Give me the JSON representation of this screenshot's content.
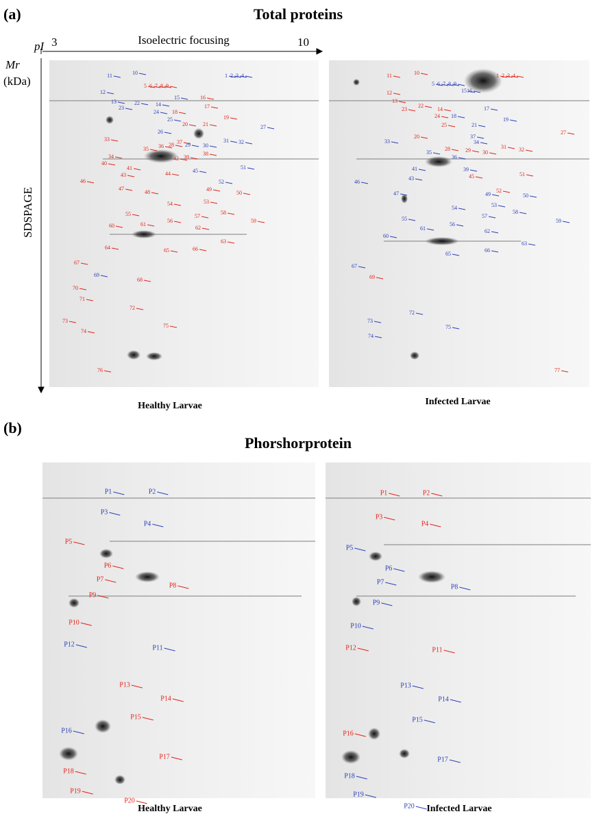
{
  "panel_a": {
    "label": "(a)",
    "title": "Total proteins",
    "axis": {
      "pI_label": "pI",
      "pI_min": 3,
      "pI_max": 10,
      "x_title": "Isoelectric focusing",
      "mr_label": "Mr",
      "mr_unit": "(kDa)",
      "y_title": "SDSPAGE"
    },
    "gels": [
      {
        "caption": "Healthy Larvae",
        "spots": [
          {
            "label": "1",
            "color": "blue"
          },
          {
            "label": "2",
            "color": "blue"
          },
          {
            "label": "3",
            "color": "blue"
          },
          {
            "label": "4",
            "color": "blue"
          },
          {
            "label": "5",
            "color": "red"
          },
          {
            "label": "6",
            "color": "red"
          },
          {
            "label": "7",
            "color": "red"
          },
          {
            "label": "8",
            "color": "red"
          },
          {
            "label": "9",
            "color": "red"
          },
          {
            "label": "10",
            "color": "blue"
          },
          {
            "label": "11",
            "color": "blue"
          },
          {
            "label": "12",
            "color": "blue"
          },
          {
            "label": "13",
            "color": "blue"
          },
          {
            "label": "14",
            "color": "blue"
          },
          {
            "label": "15",
            "color": "blue"
          },
          {
            "label": "16",
            "color": "red"
          },
          {
            "label": "17",
            "color": "red"
          },
          {
            "label": "18",
            "color": "red"
          },
          {
            "label": "19",
            "color": "red"
          },
          {
            "label": "20",
            "color": "red"
          },
          {
            "label": "21",
            "color": "red"
          },
          {
            "label": "22",
            "color": "blue"
          },
          {
            "label": "23",
            "color": "blue"
          },
          {
            "label": "24",
            "color": "blue"
          },
          {
            "label": "25",
            "color": "blue"
          },
          {
            "label": "26",
            "color": "blue"
          },
          {
            "label": "27",
            "color": "blue"
          },
          {
            "label": "28",
            "color": "red"
          },
          {
            "label": "29",
            "color": "blue"
          },
          {
            "label": "30",
            "color": "blue"
          },
          {
            "label": "31",
            "color": "blue"
          },
          {
            "label": "32",
            "color": "blue"
          },
          {
            "label": "33",
            "color": "red"
          },
          {
            "label": "34",
            "color": "red"
          },
          {
            "label": "35",
            "color": "red"
          },
          {
            "label": "36",
            "color": "red"
          },
          {
            "label": "37",
            "color": "red"
          },
          {
            "label": "38",
            "color": "red"
          },
          {
            "label": "39",
            "color": "red"
          },
          {
            "label": "40",
            "color": "red"
          },
          {
            "label": "41",
            "color": "red"
          },
          {
            "label": "42",
            "color": "red"
          },
          {
            "label": "43",
            "color": "red"
          },
          {
            "label": "44",
            "color": "red"
          },
          {
            "label": "45",
            "color": "blue"
          },
          {
            "label": "46",
            "color": "red"
          },
          {
            "label": "47",
            "color": "red"
          },
          {
            "label": "48",
            "color": "red"
          },
          {
            "label": "49",
            "color": "red"
          },
          {
            "label": "50",
            "color": "red"
          },
          {
            "label": "51",
            "color": "blue"
          },
          {
            "label": "52",
            "color": "blue"
          },
          {
            "label": "53",
            "color": "red"
          },
          {
            "label": "54",
            "color": "red"
          },
          {
            "label": "55",
            "color": "red"
          },
          {
            "label": "56",
            "color": "red"
          },
          {
            "label": "57",
            "color": "red"
          },
          {
            "label": "58",
            "color": "red"
          },
          {
            "label": "59",
            "color": "red"
          },
          {
            "label": "60",
            "color": "red"
          },
          {
            "label": "61",
            "color": "red"
          },
          {
            "label": "62",
            "color": "red"
          },
          {
            "label": "63",
            "color": "red"
          },
          {
            "label": "64",
            "color": "red"
          },
          {
            "label": "65",
            "color": "red"
          },
          {
            "label": "66",
            "color": "red"
          },
          {
            "label": "67",
            "color": "red"
          },
          {
            "label": "68",
            "color": "red"
          },
          {
            "label": "69",
            "color": "blue"
          },
          {
            "label": "70",
            "color": "red"
          },
          {
            "label": "71",
            "color": "red"
          },
          {
            "label": "72",
            "color": "red"
          },
          {
            "label": "73",
            "color": "red"
          },
          {
            "label": "74",
            "color": "red"
          },
          {
            "label": "75",
            "color": "red"
          },
          {
            "label": "76",
            "color": "red"
          }
        ]
      },
      {
        "caption": "Infected Larvae",
        "spots": [
          {
            "label": "1",
            "color": "red"
          },
          {
            "label": "2",
            "color": "red"
          },
          {
            "label": "3",
            "color": "red"
          },
          {
            "label": "4",
            "color": "red"
          },
          {
            "label": "5",
            "color": "blue"
          },
          {
            "label": "6",
            "color": "blue"
          },
          {
            "label": "7",
            "color": "blue"
          },
          {
            "label": "8",
            "color": "blue"
          },
          {
            "label": "9",
            "color": "blue"
          },
          {
            "label": "10",
            "color": "red"
          },
          {
            "label": "11",
            "color": "red"
          },
          {
            "label": "12",
            "color": "red"
          },
          {
            "label": "13",
            "color": "red"
          },
          {
            "label": "14",
            "color": "red"
          },
          {
            "label": "15",
            "color": "blue"
          },
          {
            "label": "16",
            "color": "blue"
          },
          {
            "label": "17",
            "color": "blue"
          },
          {
            "label": "18",
            "color": "blue"
          },
          {
            "label": "19",
            "color": "blue"
          },
          {
            "label": "20",
            "color": "red"
          },
          {
            "label": "21",
            "color": "blue"
          },
          {
            "label": "22",
            "color": "red"
          },
          {
            "label": "23",
            "color": "red"
          },
          {
            "label": "24",
            "color": "red"
          },
          {
            "label": "25",
            "color": "red"
          },
          {
            "label": "27",
            "color": "red"
          },
          {
            "label": "28",
            "color": "red"
          },
          {
            "label": "29",
            "color": "red"
          },
          {
            "label": "30",
            "color": "red"
          },
          {
            "label": "31",
            "color": "red"
          },
          {
            "label": "32",
            "color": "red"
          },
          {
            "label": "33",
            "color": "blue"
          },
          {
            "label": "34",
            "color": "blue"
          },
          {
            "label": "35",
            "color": "blue"
          },
          {
            "label": "36",
            "color": "blue"
          },
          {
            "label": "37",
            "color": "blue"
          },
          {
            "label": "39",
            "color": "blue"
          },
          {
            "label": "41",
            "color": "blue"
          },
          {
            "label": "43",
            "color": "blue"
          },
          {
            "label": "45",
            "color": "red"
          },
          {
            "label": "46",
            "color": "blue"
          },
          {
            "label": "47",
            "color": "blue"
          },
          {
            "label": "49",
            "color": "blue"
          },
          {
            "label": "50",
            "color": "blue"
          },
          {
            "label": "51",
            "color": "red"
          },
          {
            "label": "52",
            "color": "red"
          },
          {
            "label": "53",
            "color": "blue"
          },
          {
            "label": "54",
            "color": "blue"
          },
          {
            "label": "55",
            "color": "blue"
          },
          {
            "label": "56",
            "color": "blue"
          },
          {
            "label": "57",
            "color": "blue"
          },
          {
            "label": "58",
            "color": "blue"
          },
          {
            "label": "59",
            "color": "blue"
          },
          {
            "label": "60",
            "color": "blue"
          },
          {
            "label": "61",
            "color": "blue"
          },
          {
            "label": "62",
            "color": "blue"
          },
          {
            "label": "63",
            "color": "blue"
          },
          {
            "label": "65",
            "color": "blue"
          },
          {
            "label": "66",
            "color": "blue"
          },
          {
            "label": "67",
            "color": "blue"
          },
          {
            "label": "69",
            "color": "red"
          },
          {
            "label": "72",
            "color": "blue"
          },
          {
            "label": "73",
            "color": "blue"
          },
          {
            "label": "74",
            "color": "blue"
          },
          {
            "label": "75",
            "color": "blue"
          },
          {
            "label": "77",
            "color": "red"
          }
        ]
      }
    ]
  },
  "panel_b": {
    "label": "(b)",
    "title": "Phorshorprotein",
    "gels": [
      {
        "caption": "Healthy Larvae",
        "spots": [
          {
            "label": "P1",
            "color": "blue"
          },
          {
            "label": "P2",
            "color": "blue"
          },
          {
            "label": "P3",
            "color": "blue"
          },
          {
            "label": "P4",
            "color": "blue"
          },
          {
            "label": "P5",
            "color": "red"
          },
          {
            "label": "P6",
            "color": "red"
          },
          {
            "label": "P7",
            "color": "red"
          },
          {
            "label": "P8",
            "color": "red"
          },
          {
            "label": "P9",
            "color": "red"
          },
          {
            "label": "P10",
            "color": "red"
          },
          {
            "label": "P11",
            "color": "blue"
          },
          {
            "label": "P12",
            "color": "blue"
          },
          {
            "label": "P13",
            "color": "red"
          },
          {
            "label": "P14",
            "color": "red"
          },
          {
            "label": "P15",
            "color": "red"
          },
          {
            "label": "P16",
            "color": "blue"
          },
          {
            "label": "P17",
            "color": "red"
          },
          {
            "label": "P18",
            "color": "red"
          },
          {
            "label": "P19",
            "color": "red"
          },
          {
            "label": "P20",
            "color": "red"
          }
        ]
      },
      {
        "caption": "Infected Larvae",
        "spots": [
          {
            "label": "P1",
            "color": "red"
          },
          {
            "label": "P2",
            "color": "red"
          },
          {
            "label": "P3",
            "color": "red"
          },
          {
            "label": "P4",
            "color": "red"
          },
          {
            "label": "P5",
            "color": "blue"
          },
          {
            "label": "P6",
            "color": "blue"
          },
          {
            "label": "P7",
            "color": "blue"
          },
          {
            "label": "P8",
            "color": "blue"
          },
          {
            "label": "P9",
            "color": "blue"
          },
          {
            "label": "P10",
            "color": "blue"
          },
          {
            "label": "P11",
            "color": "red"
          },
          {
            "label": "P12",
            "color": "red"
          },
          {
            "label": "P13",
            "color": "blue"
          },
          {
            "label": "P14",
            "color": "blue"
          },
          {
            "label": "P15",
            "color": "blue"
          },
          {
            "label": "P16",
            "color": "red"
          },
          {
            "label": "P17",
            "color": "blue"
          },
          {
            "label": "P18",
            "color": "blue"
          },
          {
            "label": "P19",
            "color": "blue"
          },
          {
            "label": "P20",
            "color": "blue"
          }
        ]
      }
    ]
  }
}
